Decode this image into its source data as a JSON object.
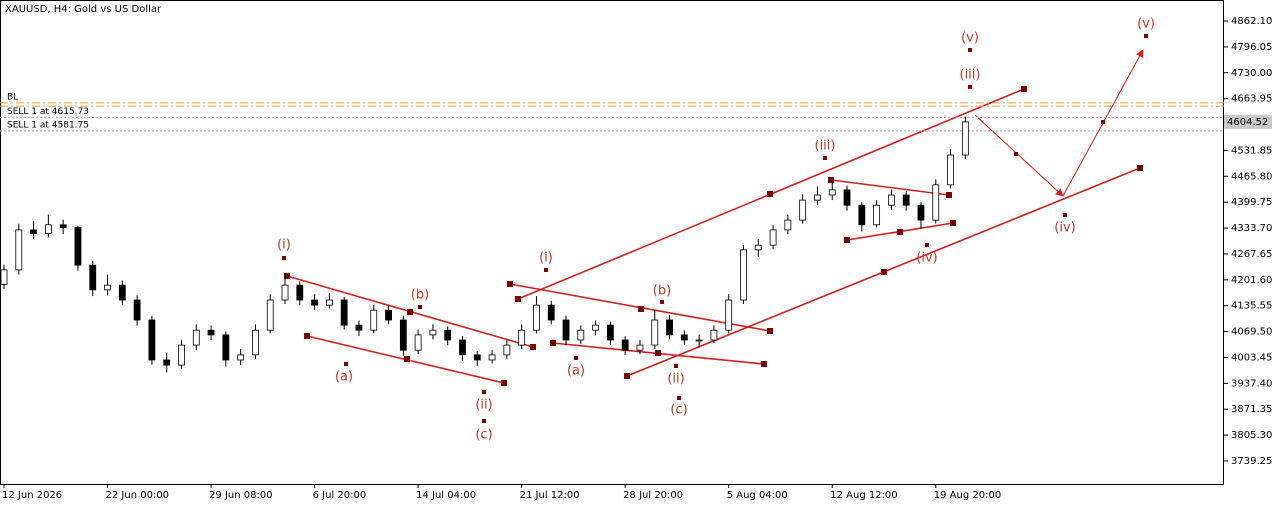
{
  "chart_data": {
    "type": "candlestick",
    "title": "XAUUSD, H4:  Gold vs US Dollar",
    "categories": [
      "12 Jun 2026",
      null,
      null,
      null,
      null,
      null,
      null,
      "22 Jun 00:00",
      null,
      null,
      null,
      null,
      null,
      null,
      "29 Jun 08:00",
      null,
      null,
      null,
      null,
      null,
      null,
      "6 Jul 20:00",
      null,
      null,
      null,
      null,
      null,
      null,
      "14 Jul 04:00",
      null,
      null,
      null,
      null,
      null,
      null,
      "21 Jul 12:00",
      null,
      null,
      null,
      null,
      null,
      null,
      "28 Jul 20:00",
      null,
      null,
      null,
      null,
      null,
      null,
      "5 Aug 04:00",
      null,
      null,
      null,
      null,
      null,
      null,
      "12 Aug 12:00",
      null,
      null,
      null,
      null,
      null,
      null,
      "19 Aug 20:00",
      null,
      null
    ],
    "candles": [
      [
        4190,
        4240,
        4178,
        4227
      ],
      [
        4227,
        4345,
        4215,
        4329
      ],
      [
        4329,
        4352,
        4305,
        4320
      ],
      [
        4320,
        4368,
        4310,
        4342
      ],
      [
        4342,
        4355,
        4318,
        4335
      ],
      [
        4335,
        4340,
        4225,
        4239
      ],
      [
        4239,
        4250,
        4160,
        4176
      ],
      [
        4176,
        4215,
        4162,
        4188
      ],
      [
        4188,
        4200,
        4138,
        4150
      ],
      [
        4150,
        4162,
        4085,
        4099
      ],
      [
        4099,
        4110,
        3985,
        3997
      ],
      [
        3997,
        4015,
        3965,
        3984
      ],
      [
        3984,
        4048,
        3975,
        4035
      ],
      [
        4035,
        4088,
        4022,
        4073
      ],
      [
        4073,
        4085,
        4048,
        4061
      ],
      [
        4061,
        4070,
        3980,
        3997
      ],
      [
        3997,
        4025,
        3984,
        4010
      ],
      [
        4010,
        4088,
        4000,
        4073
      ],
      [
        4073,
        4165,
        4065,
        4150
      ],
      [
        4150,
        4215,
        4140,
        4188
      ],
      [
        4188,
        4198,
        4138,
        4150
      ],
      [
        4150,
        4165,
        4125,
        4137
      ],
      [
        4137,
        4168,
        4128,
        4150
      ],
      [
        4150,
        4158,
        4075,
        4086
      ],
      [
        4086,
        4098,
        4058,
        4073
      ],
      [
        4073,
        4138,
        4065,
        4124
      ],
      [
        4124,
        4135,
        4088,
        4099
      ],
      [
        4099,
        4110,
        4008,
        4022
      ],
      [
        4022,
        4075,
        4012,
        4061
      ],
      [
        4061,
        4088,
        4050,
        4073
      ],
      [
        4073,
        4082,
        4035,
        4048
      ],
      [
        4048,
        4058,
        3995,
        4010
      ],
      [
        4010,
        4020,
        3982,
        3997
      ],
      [
        3997,
        4022,
        3988,
        4010
      ],
      [
        4010,
        4048,
        4000,
        4035
      ],
      [
        4035,
        4088,
        4025,
        4073
      ],
      [
        4073,
        4160,
        4065,
        4137
      ],
      [
        4137,
        4148,
        4088,
        4099
      ],
      [
        4099,
        4110,
        4035,
        4048
      ],
      [
        4048,
        4085,
        4038,
        4073
      ],
      [
        4073,
        4098,
        4060,
        4086
      ],
      [
        4086,
        4095,
        4035,
        4048
      ],
      [
        4048,
        4058,
        4010,
        4022
      ],
      [
        4022,
        4048,
        4012,
        4035
      ],
      [
        4035,
        4125,
        4025,
        4099
      ],
      [
        4099,
        4112,
        4050,
        4061
      ],
      [
        4061,
        4072,
        4035,
        4048
      ],
      [
        4048,
        4062,
        4028,
        4048
      ],
      [
        4048,
        4085,
        4040,
        4073
      ],
      [
        4073,
        4165,
        4065,
        4150
      ],
      [
        4150,
        4290,
        4140,
        4278
      ],
      [
        4278,
        4305,
        4260,
        4290
      ],
      [
        4290,
        4342,
        4280,
        4329
      ],
      [
        4329,
        4368,
        4318,
        4354
      ],
      [
        4354,
        4420,
        4345,
        4405
      ],
      [
        4405,
        4440,
        4392,
        4418
      ],
      [
        4418,
        4455,
        4405,
        4431
      ],
      [
        4431,
        4442,
        4378,
        4392
      ],
      [
        4392,
        4400,
        4325,
        4342
      ],
      [
        4342,
        4405,
        4335,
        4392
      ],
      [
        4392,
        4432,
        4380,
        4418
      ],
      [
        4418,
        4428,
        4378,
        4392
      ],
      [
        4392,
        4400,
        4332,
        4354
      ],
      [
        4354,
        4458,
        4345,
        4444
      ],
      [
        4444,
        4535,
        4435,
        4520
      ],
      [
        4520,
        4618,
        4510,
        4604.52
      ]
    ],
    "ylim": [
      3680.5,
      4915.7
    ],
    "yticks": [
      {
        "value": 4862.1,
        "label": "4862.10"
      },
      4796.05,
      {
        "value": 4730,
        "label": "4730.00"
      },
      4663.95,
      4531.85,
      {
        "value": 4465.8,
        "label": "4465.80"
      },
      4399.75,
      {
        "value": 4333.7,
        "label": "4333.70"
      },
      4267.65,
      {
        "value": 4201.6,
        "label": "4201.60"
      },
      4135.55,
      {
        "value": 4069.5,
        "label": "4069.50"
      },
      4003.45,
      {
        "value": 3937.4,
        "label": "3937.40"
      },
      3871.35,
      {
        "value": 3805.3,
        "label": "3805.30"
      },
      3739.25
    ],
    "grid": false,
    "bull_color": "#ffffff",
    "bear_color": "#000000",
    "levels": [
      {
        "label": "BL",
        "value": 4653,
        "color": "#e8a04a"
      },
      {
        "value": 4645,
        "color": "#e8a04a"
      },
      {
        "label": "SELL 1 at 4615.73",
        "value": 4615.73,
        "color": "#b0b0b0"
      },
      {
        "label": "SELL 1 at 4581.75",
        "value": 4581.75,
        "color": "#b0b0b0"
      }
    ],
    "last_price": 4604.52,
    "annotations": [
      "(i)",
      "(a)",
      "(b)",
      "(ii)",
      "(c)",
      "(i)",
      "(a)",
      "(b)",
      "(ii)",
      "(c)",
      "(iii)",
      "(iv)",
      "(iii)",
      "(v)",
      "(iv)",
      "(v)"
    ]
  }
}
